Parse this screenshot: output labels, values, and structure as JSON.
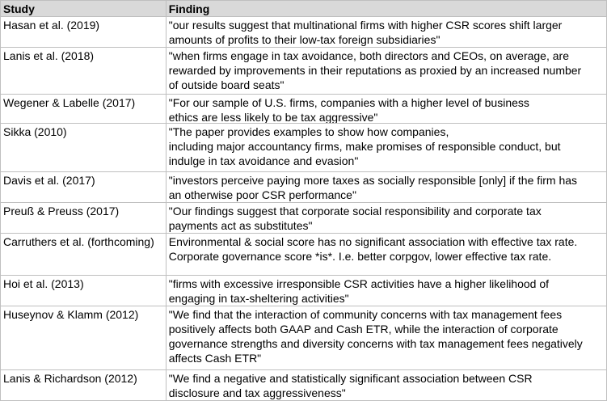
{
  "table": {
    "header": [
      "Study",
      "Finding"
    ],
    "rows": [
      [
        "Hasan et al. (2019)",
        [
          "\"our results suggest that multinational firms with higher CSR scores shift larger",
          "amounts of profits to their low-tax foreign subsidiaries\""
        ]
      ],
      [
        "Lanis et al. (2018)",
        [
          "\"when firms engage in tax avoidance, both directors and CEOs, on average, are",
          "rewarded by improvements in their reputations as proxied by an increased number",
          "of outside board seats\""
        ]
      ],
      [
        "Wegener & Labelle (2017)",
        [
          "\"For our sample of U.S. firms, companies with a higher level of business",
          "ethics are less likely to be tax aggressive\""
        ]
      ],
      [
        "Sikka (2010)",
        [
          "\"The paper provides examples to show how companies,",
          "including major accountancy firms, make promises of responsible conduct, but",
          "indulge in tax avoidance and evasion\""
        ]
      ],
      [
        "Davis et al. (2017)",
        [
          "\"investors perceive paying more taxes as socially responsible [only] if the firm has",
          "an otherwise poor CSR performance\""
        ]
      ],
      [
        "Preuß & Preuss (2017)",
        [
          "\"Our findings suggest that corporate social responsibility and corporate tax",
          "payments act as substitutes\""
        ]
      ],
      [
        "Carruthers et al. (forthcoming)",
        [
          "Environmental & social score has no significant association with effective tax rate.",
          "Corporate governance score *is*. I.e. better corpgov, lower effective tax rate."
        ]
      ],
      [
        "Hoi et al. (2013)",
        [
          "\"firms with excessive irresponsible CSR activities have a higher likelihood of",
          "engaging in tax-sheltering activities\""
        ]
      ],
      [
        "Huseynov & Klamm (2012)",
        [
          "\"We find that the interaction of community concerns with tax management fees",
          "positively affects both GAAP and Cash ETR, while the interaction of corporate",
          "governance strengths and diversity concerns with tax management fees negatively",
          "affects Cash ETR\""
        ]
      ],
      [
        "Lanis & Richardson (2012)",
        [
          "\"We find a negative and statistically significant association between CSR",
          "disclosure and tax aggressiveness\""
        ]
      ]
    ]
  }
}
